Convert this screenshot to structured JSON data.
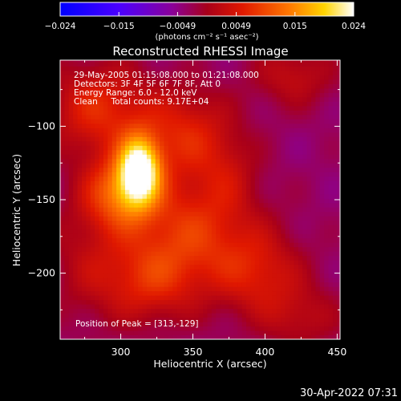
{
  "chart_data": {
    "type": "heatmap",
    "title": "Reconstructed RHESSI Image",
    "xlabel": "Heliocentric X (arcsec)",
    "ylabel": "Heliocentric Y (arcsec)",
    "xlim": [
      258,
      452
    ],
    "ylim": [
      -245,
      -55
    ],
    "x_ticks": [
      300,
      350,
      400,
      450
    ],
    "y_ticks": [
      -100,
      -150,
      -200
    ],
    "colorbar": {
      "ticks": [
        "-0.024",
        "-0.015",
        "-0.0049",
        "0.0049",
        "0.015",
        "0.024"
      ],
      "units": "(photons cm⁻² s⁻¹ asec⁻²)",
      "range": [
        -0.024,
        0.024
      ]
    },
    "annotations": [
      "29-May-2005 01:15:08.000 to 01:21:08.000",
      "Detectors: 3F 4F 5F 6F 7F 8F, Att 0",
      "Energy Range: 6.0 - 12.0 keV",
      "Clean     Total counts: 9.17E+04"
    ],
    "peak_text": "Position of Peak = [313,-129]",
    "peak": [
      313,
      -129
    ],
    "sources": [
      {
        "x": 313,
        "y": -129,
        "amp": 0.024,
        "sx": 10,
        "sy": 16
      },
      {
        "x": 300,
        "y": -145,
        "amp": 0.014,
        "sx": 18,
        "sy": 18
      },
      {
        "x": 285,
        "y": -88,
        "amp": 0.01,
        "sx": 25,
        "sy": 22
      },
      {
        "x": 345,
        "y": -105,
        "amp": 0.009,
        "sx": 22,
        "sy": 22
      },
      {
        "x": 350,
        "y": -170,
        "amp": 0.01,
        "sx": 30,
        "sy": 25
      },
      {
        "x": 320,
        "y": -205,
        "amp": 0.009,
        "sx": 25,
        "sy": 20
      },
      {
        "x": 395,
        "y": -200,
        "amp": 0.008,
        "sx": 22,
        "sy": 20
      },
      {
        "x": 420,
        "y": -65,
        "amp": 0.006,
        "sx": 20,
        "sy": 15
      },
      {
        "x": 425,
        "y": -230,
        "amp": 0.005,
        "sx": 20,
        "sy": 15
      },
      {
        "x": 275,
        "y": -190,
        "amp": 0.004,
        "sx": 20,
        "sy": 30
      },
      {
        "x": 375,
        "y": -130,
        "amp": 0.004,
        "sx": 15,
        "sy": 20
      }
    ]
  },
  "footer": {
    "timestamp": "30-Apr-2022 07:31"
  }
}
